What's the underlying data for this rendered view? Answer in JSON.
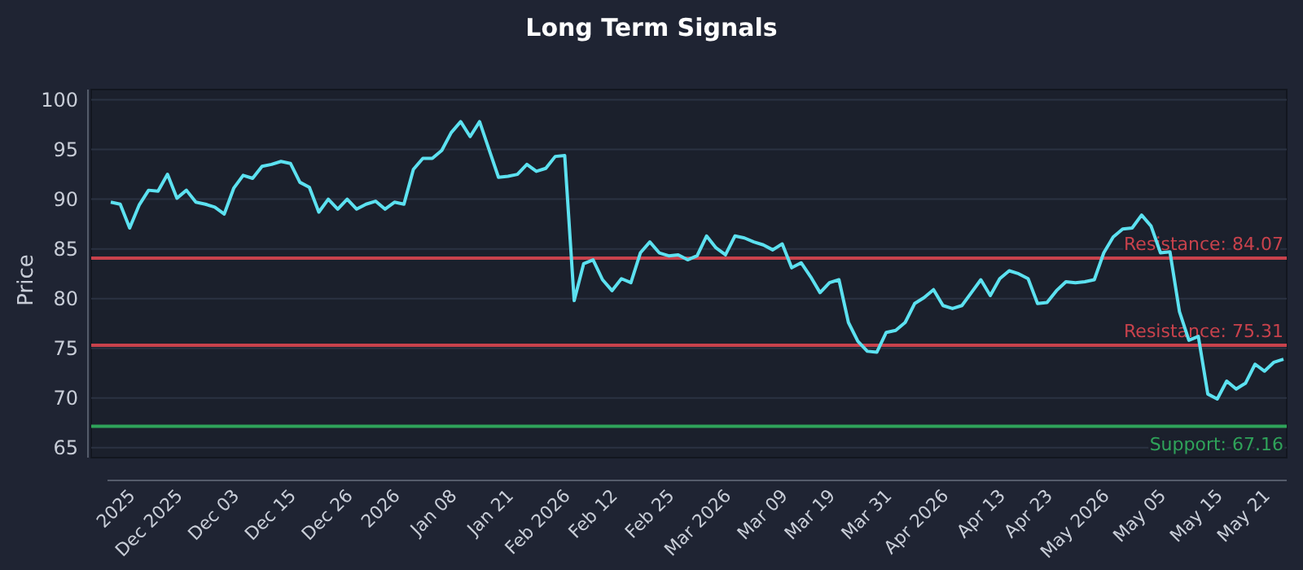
{
  "chart_data": {
    "type": "line",
    "title": "Long Term Signals",
    "ylabel": "Price",
    "categories": [
      null,
      null,
      "2025",
      null,
      null,
      null,
      null,
      "Dec 2025",
      null,
      null,
      null,
      null,
      null,
      "Dec 03",
      null,
      null,
      null,
      null,
      null,
      "Dec 15",
      null,
      null,
      null,
      null,
      null,
      "Dec 26",
      null,
      null,
      null,
      null,
      "2026",
      null,
      null,
      null,
      null,
      null,
      "Jan 08",
      null,
      null,
      null,
      null,
      null,
      "Jan 21",
      null,
      null,
      null,
      null,
      null,
      "Feb 2026",
      null,
      null,
      null,
      null,
      "Feb 12",
      null,
      null,
      null,
      null,
      null,
      "Feb 25",
      null,
      null,
      null,
      null,
      null,
      "Mar 2026",
      null,
      null,
      null,
      null,
      null,
      "Mar 09",
      null,
      null,
      null,
      null,
      "Mar 19",
      null,
      null,
      null,
      null,
      null,
      "Mar 31",
      null,
      null,
      null,
      null,
      null,
      "Apr 2026",
      null,
      null,
      null,
      null,
      null,
      "Apr 13",
      null,
      null,
      null,
      null,
      "Apr 23",
      null,
      null,
      null,
      null,
      null,
      "May 2026",
      null,
      null,
      null,
      null,
      null,
      "May 05",
      null,
      null,
      null,
      null,
      null,
      "May 15",
      null,
      null,
      null,
      null,
      "May 21",
      null,
      null
    ],
    "series": [
      {
        "color": "#5ce1f0",
        "values": [
          89.7,
          89.5,
          87.1,
          89.4,
          90.9,
          90.8,
          92.5,
          90.1,
          90.9,
          89.7,
          89.5,
          89.2,
          88.5,
          91.1,
          92.4,
          92.1,
          93.3,
          93.5,
          93.8,
          93.6,
          91.7,
          91.2,
          88.7,
          90.0,
          89.0,
          90.0,
          89.0,
          89.5,
          89.8,
          89.0,
          89.7,
          89.5,
          93.0,
          94.1,
          94.1,
          94.9,
          96.7,
          97.8,
          96.3,
          97.8,
          95.0,
          92.2,
          92.3,
          92.5,
          93.5,
          92.8,
          93.1,
          94.3,
          94.4,
          79.8,
          83.5,
          83.9,
          81.9,
          80.8,
          82.0,
          81.6,
          84.6,
          85.7,
          84.6,
          84.3,
          84.4,
          83.9,
          84.3,
          86.3,
          85.1,
          84.4,
          86.3,
          86.1,
          85.7,
          85.4,
          84.9,
          85.5,
          83.1,
          83.6,
          82.2,
          80.6,
          81.6,
          81.9,
          77.6,
          75.7,
          74.7,
          74.6,
          76.6,
          76.8,
          77.6,
          79.5,
          80.1,
          80.9,
          79.3,
          79.0,
          79.3,
          80.6,
          81.9,
          80.3,
          82.0,
          82.8,
          82.5,
          82.0,
          79.5,
          79.6,
          80.8,
          81.7,
          81.6,
          81.7,
          81.9,
          84.6,
          86.2,
          87.0,
          87.1,
          88.4,
          87.3,
          84.6,
          84.7,
          78.7,
          75.8,
          76.2,
          70.4,
          69.9,
          71.7,
          70.9,
          71.5,
          73.4,
          72.7,
          73.6,
          73.9
        ]
      }
    ],
    "ylim": [
      64,
      100.7
    ],
    "yticks": [
      65,
      70,
      75,
      80,
      85,
      90,
      95,
      100
    ],
    "grid": "y",
    "line_style": "solid",
    "marker": "none",
    "ref_lines": [
      {
        "axis": "y",
        "value": 84.07,
        "label": "Resistance: 84.07",
        "color": "#c8424c"
      },
      {
        "axis": "y",
        "value": 75.31,
        "label": "Resistance: 75.31",
        "color": "#c8424c"
      },
      {
        "axis": "y",
        "value": 67.16,
        "label": "Support: 67.16",
        "color": "#2fa35a"
      }
    ]
  }
}
